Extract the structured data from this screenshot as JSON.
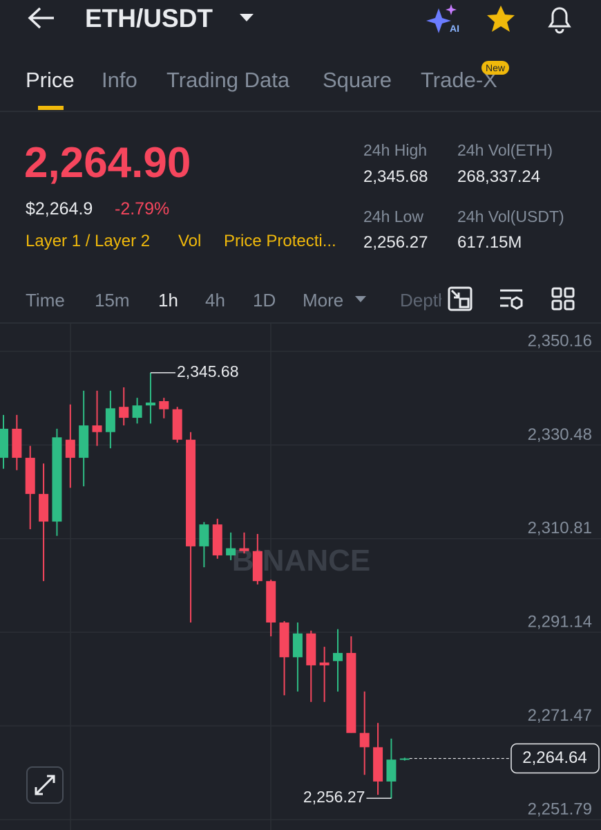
{
  "header": {
    "title": "ETH/USDT",
    "ai_badge": "AI"
  },
  "tabs": [
    "Price",
    "Info",
    "Trading Data",
    "Square",
    "Trade-X"
  ],
  "tab_badge": "New",
  "ticker": {
    "price": "2,264.90",
    "usd_price": "$2,264.9",
    "change": "-2.79%",
    "tags": [
      "Layer 1 / Layer 2",
      "Vol",
      "Price Protecti..."
    ],
    "stats": [
      {
        "label": "24h High",
        "value": "2,345.68"
      },
      {
        "label": "24h Vol(ETH)",
        "value": "268,337.24"
      },
      {
        "label": "24h Low",
        "value": "2,256.27"
      },
      {
        "label": "24h Vol(USDT)",
        "value": "617.15M"
      }
    ]
  },
  "timeframes": [
    "Time",
    "15m",
    "1h",
    "4h",
    "1D",
    "More",
    "Depth"
  ],
  "chart_data": {
    "type": "candlestick",
    "watermark": "BINANCE",
    "up_color": "#2ebd85",
    "down_color": "#f6465d",
    "open": [
      2327.8,
      2333.9,
      2327.8,
      2320.2,
      2314.4,
      2331.6,
      2327.8,
      2334.6,
      2333.2,
      2338.5,
      2336.2,
      2338.8,
      2339.7,
      2338.0,
      2331.6,
      2309.2,
      2313.8,
      2307.3,
      2308.8,
      2308.2,
      2301.9,
      2293.2,
      2285.9,
      2290.9,
      2284.8,
      2285.1,
      2286.8,
      2270.0,
      2267.0,
      2259.8,
      2264.4
    ],
    "high": [
      2336.8,
      2336.8,
      2330.3,
      2326.6,
      2333.9,
      2339.0,
      2341.9,
      2341.9,
      2341.9,
      2342.6,
      2340.4,
      2345.68,
      2340.4,
      2338.5,
      2333.2,
      2314.3,
      2315.0,
      2312.1,
      2312.1,
      2311.8,
      2302.2,
      2293.5,
      2293.2,
      2291.5,
      2288.1,
      2291.8,
      2290.3,
      2278.7,
      2272.1,
      2268.8,
      2264.8
    ],
    "low": [
      2325.5,
      2325.2,
      2312.8,
      2301.9,
      2311.4,
      2321.5,
      2321.8,
      2330.3,
      2329.8,
      2334.6,
      2335.0,
      2335.0,
      2336.1,
      2331.0,
      2293.2,
      2304.8,
      2306.6,
      2306.3,
      2307.7,
      2301.2,
      2290.3,
      2277.9,
      2278.7,
      2276.5,
      2276.5,
      2278.7,
      2270.0,
      2261.2,
      2257.0,
      2256.27,
      2264.2
    ],
    "close": [
      2333.9,
      2327.8,
      2320.2,
      2314.4,
      2332.1,
      2327.8,
      2334.6,
      2333.2,
      2338.2,
      2336.2,
      2338.8,
      2339.4,
      2338.0,
      2331.6,
      2309.2,
      2313.8,
      2307.3,
      2308.8,
      2308.2,
      2301.9,
      2293.2,
      2285.9,
      2290.9,
      2284.2,
      2284.2,
      2286.8,
      2270.0,
      2267.0,
      2259.8,
      2264.4,
      2264.64
    ],
    "ylim": [
      2249.61,
      2355.68
    ],
    "yticks": [
      {
        "value": 2350.16,
        "label": "2,350.16"
      },
      {
        "value": 2330.48,
        "label": "2,330.48"
      },
      {
        "value": 2310.81,
        "label": "2,310.81"
      },
      {
        "value": 2291.14,
        "label": "2,291.14"
      },
      {
        "value": 2271.47,
        "label": "2,271.47"
      },
      {
        "value": 2251.79,
        "label": "2,251.79"
      }
    ],
    "high_label": {
      "value": 2345.68,
      "label": "2,345.68"
    },
    "low_label": {
      "value": 2256.27,
      "label": "2,256.27"
    },
    "last_price": {
      "value": 2264.64,
      "label": "2,264.64"
    },
    "grid": true
  }
}
